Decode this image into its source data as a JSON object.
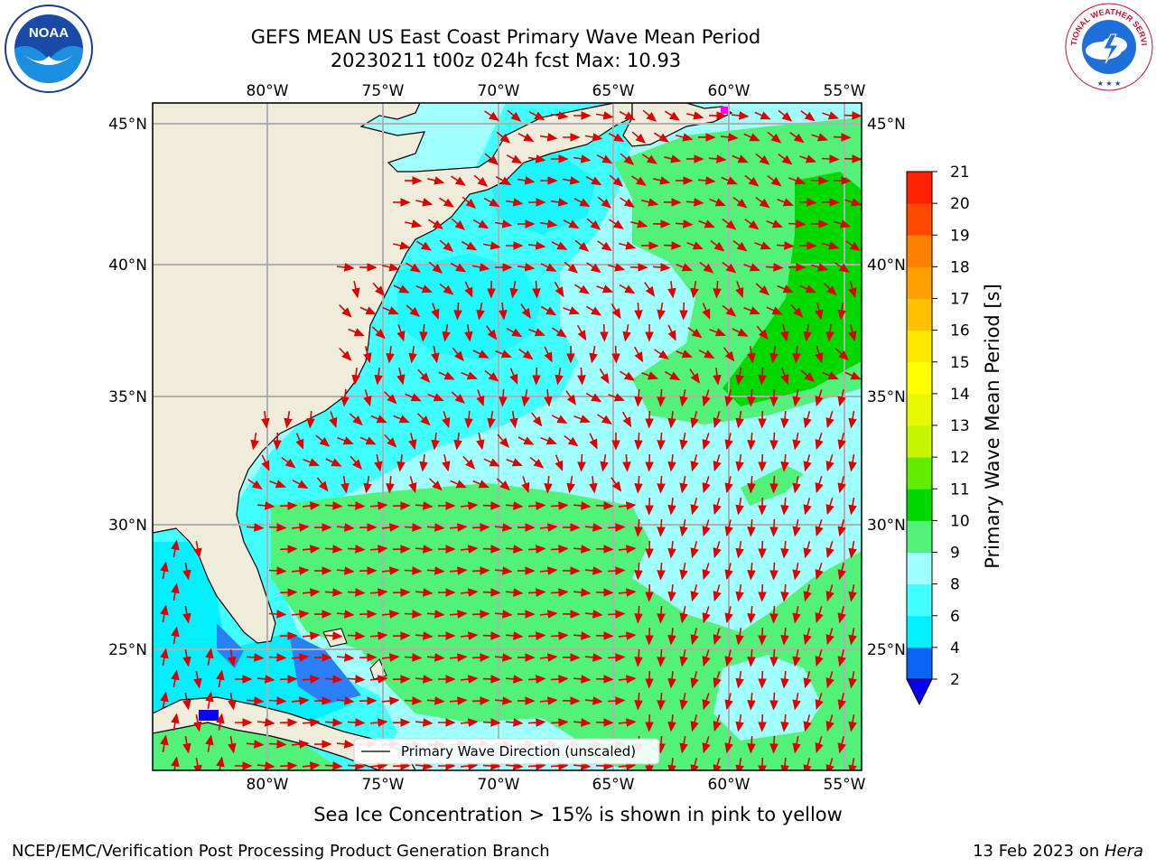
{
  "title": {
    "line1": "GEFS MEAN US East Coast Primary Wave Mean Period",
    "line2": "20230211 t00z 024h fcst   Max: 10.93"
  },
  "map": {
    "lon_labels": [
      "80°W",
      "75°W",
      "70°W",
      "65°W",
      "60°W",
      "55°W"
    ],
    "lat_labels": [
      "45°N",
      "40°N",
      "35°N",
      "30°N",
      "25°N"
    ],
    "lon_range": [
      -85,
      -54.3
    ],
    "lat_range": [
      20.5,
      45.8
    ],
    "grid": true,
    "legend_label": "Primary Wave Direction (unscaled)",
    "land_color": "#efecdc",
    "arrow_color": "#e00000"
  },
  "colorbar": {
    "label": "Primary Wave Mean Period [s]",
    "ticks": [
      "2",
      "4",
      "6",
      "8",
      "9",
      "10",
      "11",
      "12",
      "13",
      "14",
      "15",
      "16",
      "17",
      "18",
      "19",
      "20",
      "21"
    ],
    "colors": [
      "#0a64f5",
      "#00f0ff",
      "#42ffff",
      "#a0ffff",
      "#52f27a",
      "#00d900",
      "#62ed00",
      "#c8f500",
      "#e8f800",
      "#ffff00",
      "#ffe800",
      "#ffc000",
      "#ffa000",
      "#ff8000",
      "#ff4800",
      "#ff2000",
      "#ff0000"
    ],
    "under_color": "#0a00f0"
  },
  "subtitle": "Sea Ice Concentration > 15% is shown in pink to yellow",
  "footer": {
    "left": "NCEP/EMC/Verification Post Processing Product Generation Branch",
    "right_prefix": "13 Feb 2023 on ",
    "right_host": "Hera"
  },
  "logos": {
    "left": "noaa-logo",
    "left_text": "NOAA",
    "right": "nws-logo",
    "right_text": "NATIONAL WEATHER SERVICE"
  }
}
